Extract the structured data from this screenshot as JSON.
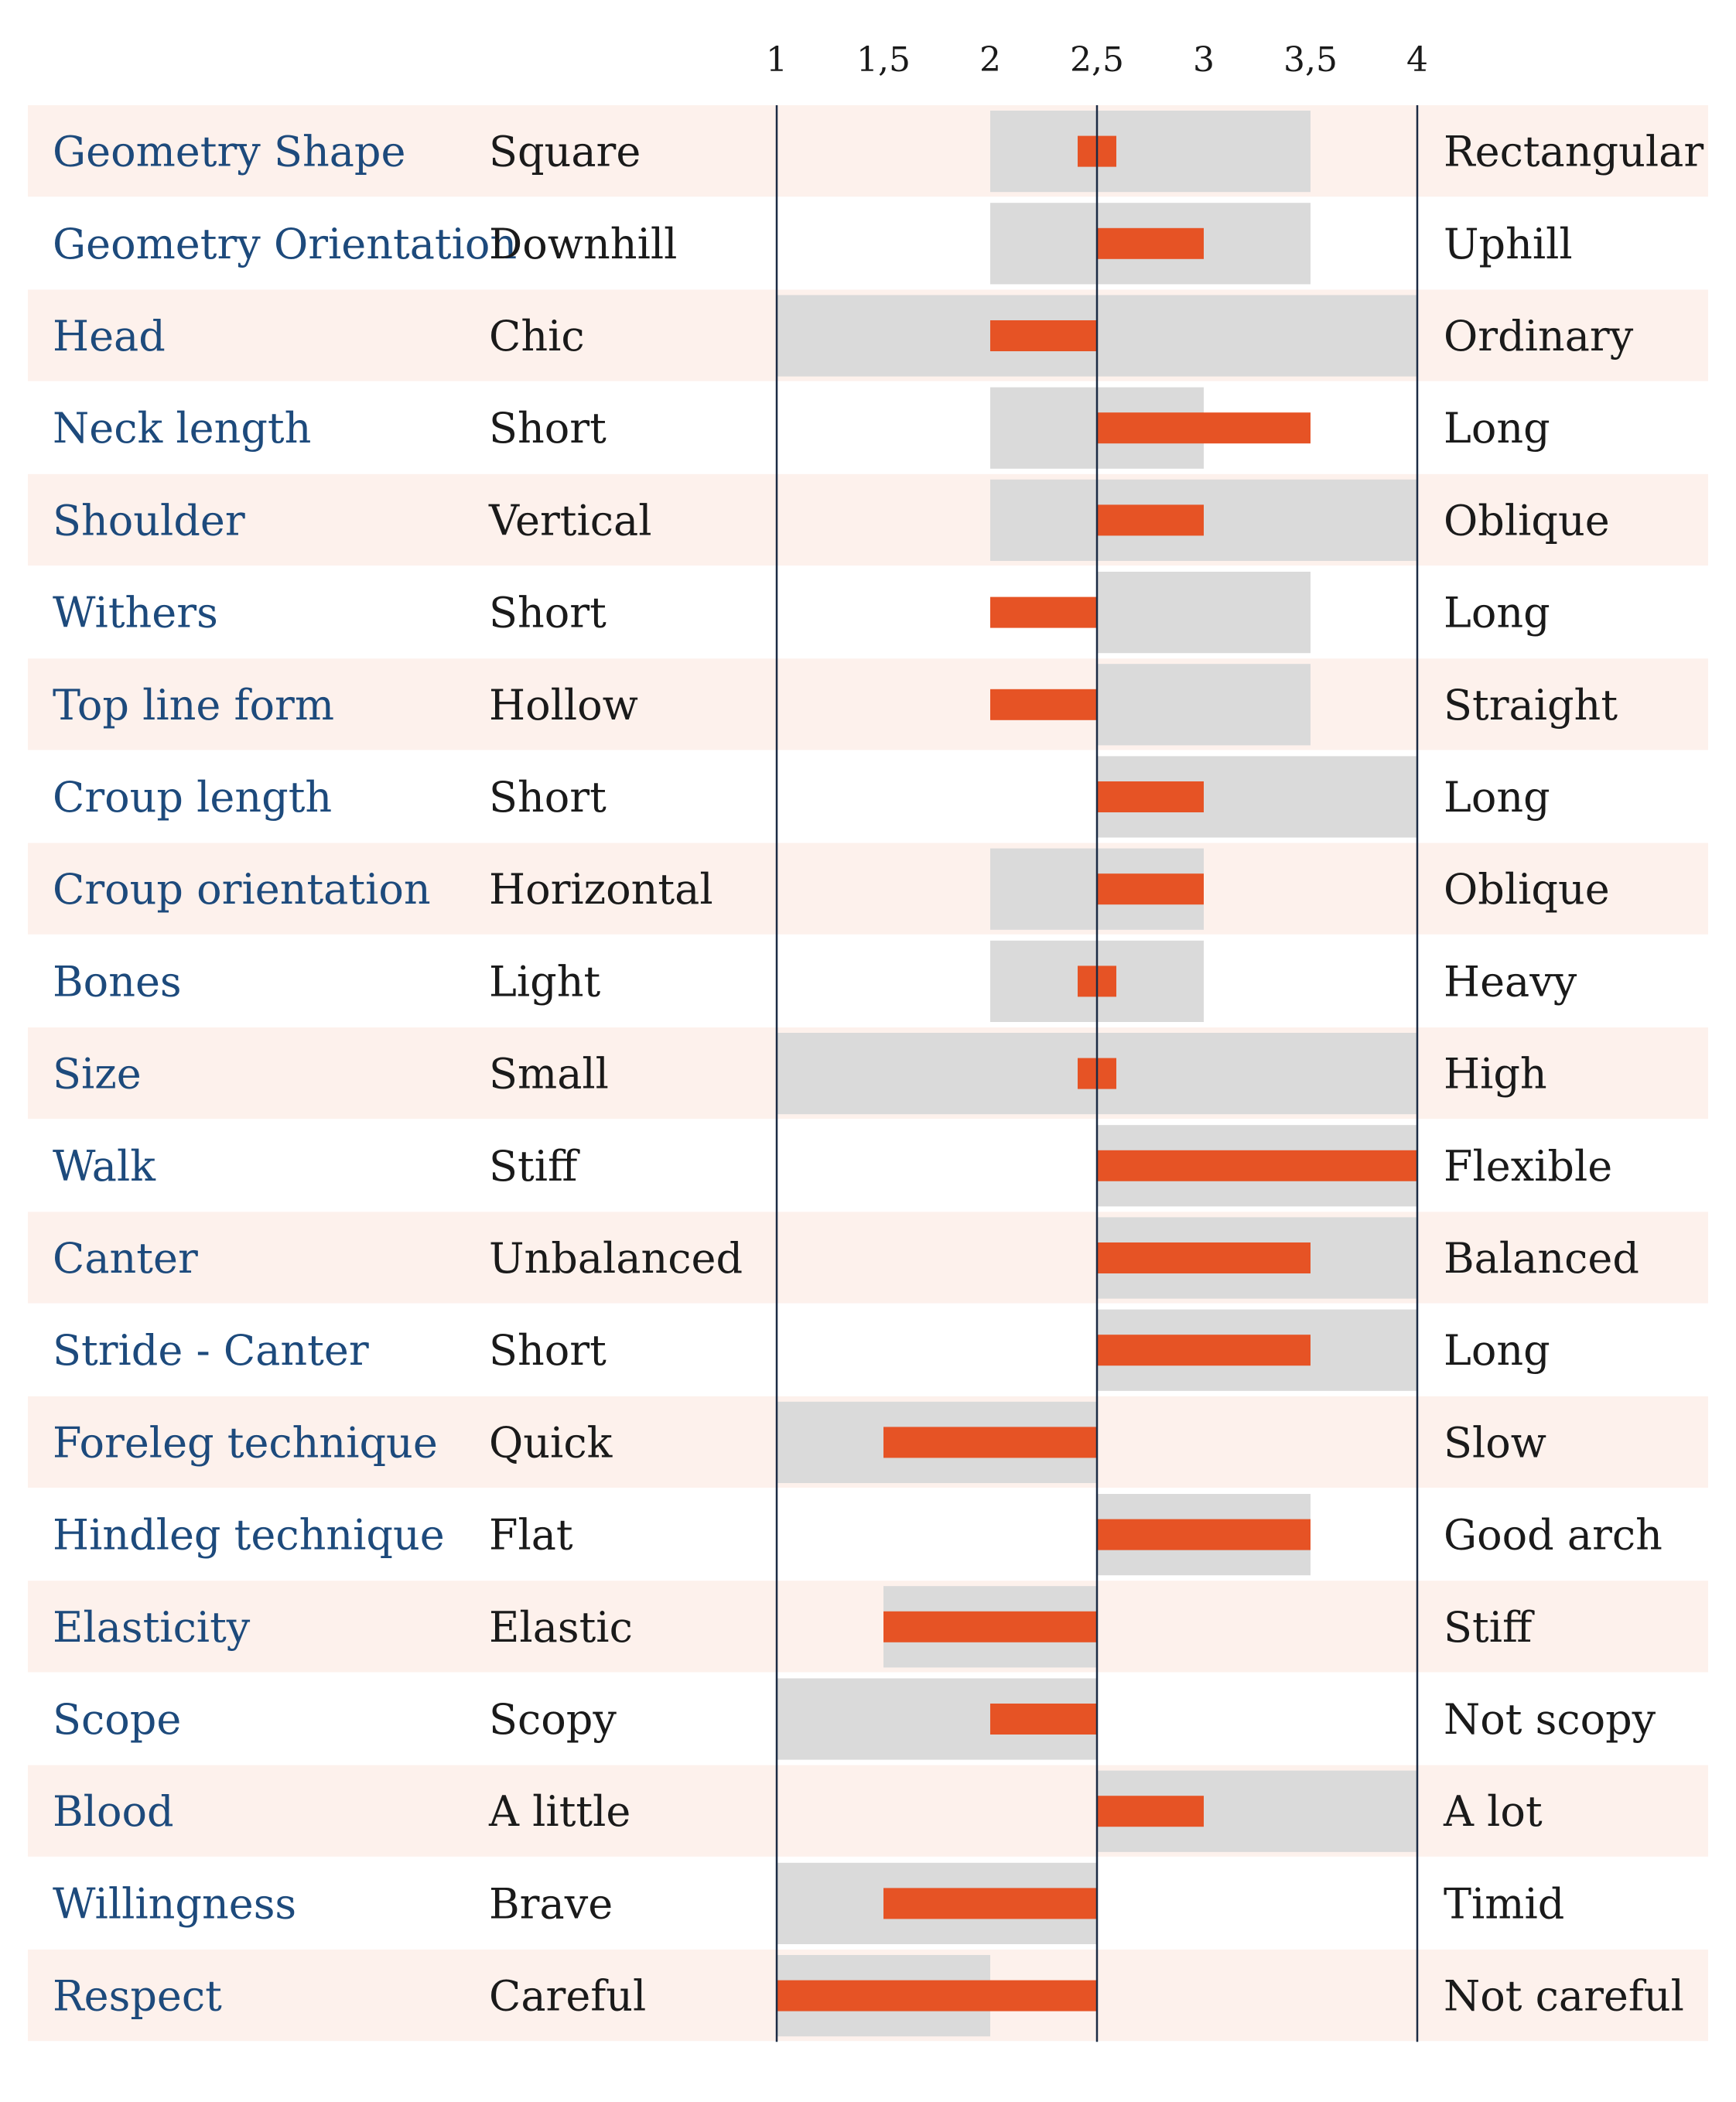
{
  "chart_data": {
    "type": "bar",
    "title": "",
    "xlabel": "",
    "ylabel": "",
    "xlim": [
      1,
      4
    ],
    "ticks": [
      "1",
      "1,5",
      "2",
      "2,5",
      "3",
      "3,5",
      "4"
    ],
    "tick_values": [
      1,
      1.5,
      2,
      2.5,
      3,
      3.5,
      4
    ],
    "baseline": 2.5,
    "colors": {
      "row_band": "#fdf1ec",
      "range_bar": "#dadada",
      "value_bar": "#e65325",
      "axis_line": "#1b2b44",
      "trait_text": "#1d4a7c",
      "side_text": "#1a1a1a"
    },
    "rows": [
      {
        "trait": "Geometry Shape",
        "left": "Square",
        "right": "Rectangular",
        "value": 2.5,
        "range": [
          2,
          3.5
        ]
      },
      {
        "trait": "Geometry Orientation",
        "left": "Downhill",
        "right": "Uphill",
        "value": 3,
        "range": [
          2,
          3.5
        ]
      },
      {
        "trait": "Head",
        "left": "Chic",
        "right": "Ordinary",
        "value": 2,
        "range": [
          1,
          4
        ]
      },
      {
        "trait": "Neck length",
        "left": "Short",
        "right": "Long",
        "value": 3.5,
        "range": [
          2,
          3
        ]
      },
      {
        "trait": "Shoulder",
        "left": "Vertical",
        "right": "Oblique",
        "value": 3,
        "range": [
          2,
          4
        ]
      },
      {
        "trait": "Withers",
        "left": "Short",
        "right": "Long",
        "value": 2,
        "range": [
          2.5,
          3.5
        ]
      },
      {
        "trait": "Top line form",
        "left": "Hollow",
        "right": "Straight",
        "value": 2,
        "range": [
          2.5,
          3.5
        ]
      },
      {
        "trait": "Croup length",
        "left": "Short",
        "right": "Long",
        "value": 3,
        "range": [
          2.5,
          4
        ]
      },
      {
        "trait": "Croup orientation",
        "left": "Horizontal",
        "right": "Oblique",
        "value": 3,
        "range": [
          2,
          3
        ]
      },
      {
        "trait": "Bones",
        "left": "Light",
        "right": "Heavy",
        "value": 2.5,
        "range": [
          2,
          3
        ]
      },
      {
        "trait": "Size",
        "left": "Small",
        "right": "High",
        "value": 2.5,
        "range": [
          1,
          4
        ]
      },
      {
        "trait": "Walk",
        "left": "Stiff",
        "right": "Flexible",
        "value": 4,
        "range": [
          2.5,
          4
        ]
      },
      {
        "trait": "Canter",
        "left": "Unbalanced",
        "right": "Balanced",
        "value": 3.5,
        "range": [
          2.5,
          4
        ]
      },
      {
        "trait": "Stride - Canter",
        "left": "Short",
        "right": "Long",
        "value": 3.5,
        "range": [
          2.5,
          4
        ]
      },
      {
        "trait": "Foreleg technique",
        "left": "Quick",
        "right": "Slow",
        "value": 1.5,
        "range": [
          1,
          2.5
        ]
      },
      {
        "trait": "Hindleg technique",
        "left": "Flat",
        "right": "Good arch",
        "value": 3.5,
        "range": [
          2.5,
          3.5
        ]
      },
      {
        "trait": "Elasticity",
        "left": "Elastic",
        "right": "Stiff",
        "value": 1.5,
        "range": [
          1.5,
          2.5
        ]
      },
      {
        "trait": "Scope",
        "left": "Scopy",
        "right": "Not scopy",
        "value": 2,
        "range": [
          1,
          2.5
        ]
      },
      {
        "trait": "Blood",
        "left": "A little",
        "right": "A lot",
        "value": 3,
        "range": [
          2.5,
          4
        ]
      },
      {
        "trait": "Willingness",
        "left": "Brave",
        "right": "Timid",
        "value": 1.5,
        "range": [
          1,
          2.5
        ]
      },
      {
        "trait": "Respect",
        "left": "Careful",
        "right": "Not careful",
        "value": 1,
        "range": [
          1,
          2
        ]
      }
    ]
  }
}
